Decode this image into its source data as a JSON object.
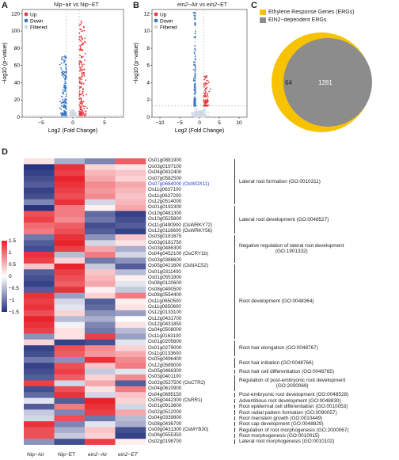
{
  "panels": {
    "a": {
      "letter": "A",
      "title": "Nip−air vs Nip−ET"
    },
    "b": {
      "letter": "B",
      "title_pre": "ein2",
      "title_mid": "−Air vs ",
      "title_post_it": "ein2",
      "title_post": "−ET"
    },
    "c": {
      "letter": "C"
    },
    "d": {
      "letter": "D"
    }
  },
  "volcano_legend": {
    "up": "Up",
    "down": "Down",
    "filtered": "Filtered"
  },
  "volcano_axes": {
    "ylabel": "−log10 (p−value)",
    "xlabel": "Log2 (Fold Change)",
    "a_xticks": [
      "−5",
      "0",
      "5"
    ],
    "a_yticks": [
      "0",
      "20",
      "40",
      "60",
      "80",
      "100",
      "120"
    ],
    "b_xticks": [
      "−10",
      "−5",
      "0",
      "5",
      "10"
    ],
    "b_yticks": [
      "0",
      "2",
      "4",
      "6",
      "8",
      "10",
      "12"
    ]
  },
  "colors": {
    "up": "#e8383d",
    "down": "#3a78c2",
    "filtered": "#cfd8e3",
    "ergs": "#f7c300",
    "ein2": "#8c8c8c",
    "heat_high": "#e8232c",
    "heat_mid": "#ffffff",
    "heat_low": "#27347f"
  },
  "venn": {
    "legend_ergs": "Ethylene Response Genes (ERGs)",
    "legend_ein2": "EIN2−dependent ERGs",
    "count_only": "64",
    "count_overlap": "1281"
  },
  "heatmap": {
    "scale_ticks": [
      "1.5",
      "1",
      "0.5",
      "0",
      "−0.5",
      "−1",
      "−1.5"
    ],
    "columns": [
      "Nip−Air",
      "Nip−ET",
      "ein2−Air",
      "ein2−ET"
    ],
    "genes": [
      "Os01g0881900",
      "Os03g0197100",
      "Os04g0432400",
      "Os07g0582500",
      "Os07g0684000 (OsWOX11)",
      "Os11g0637100",
      "Os11g0637200",
      "Os12g0514000",
      "Os01g0192300",
      "Os10g0481300",
      "Os10g0525800",
      "Os11g0490900 (OsWRKY72)",
      "Os12g0116600 (OsWRKY56)",
      "Os03g0181675",
      "Os03g0181750",
      "Os03g0486300",
      "Os04g0452100 (OsCRY1b)",
      "Os03g0388600",
      "Os05g0421600 (OsNAC52)",
      "Os01g0311400",
      "Os01g0551800",
      "Os08g0120600",
      "Os08g0490500",
      "Os08g0554400",
      "Os11g0650500",
      "Os11g0650600",
      "Os12g0133100",
      "Os12g0431700",
      "Os12g0431850",
      "Os04g0508000",
      "Os11g0163100",
      "Os01g0205600",
      "Os01g0279000",
      "Os11g0133600",
      "Os05g0496400",
      "Os12g0589000",
      "Os05g0466300",
      "Os03g0401100",
      "Os02g0527500 (OsCTR2)",
      "Os04g0610900",
      "Os04g0695150",
      "Os05g0442300 (OsRR1)",
      "Os01g0913600",
      "Os02g0512000",
      "Os04g0339800",
      "Os08g0436700",
      "Os09g0431300 (OsMYB30)",
      "Os06g0555350",
      "Os02g0198700"
    ],
    "terms": [
      {
        "label": "Lateral root formation (GO:0010311)"
      },
      {
        "label": "Lateral root development (GO:0048527)"
      },
      {
        "label": "Negative regulation of lateral root development",
        "label2": "(GO:1901332)"
      },
      {
        "label": "Root development (GO:0048364)"
      },
      {
        "label": "Root hair elongation (GO:0048767)"
      },
      {
        "label": "Root hair initiation (GO:0048766)"
      },
      {
        "label": "Root hair cell differentiation (GO:0048765)"
      },
      {
        "label": "Regulation of post-embryonic root development",
        "label2": "(GO:2000069)"
      },
      {
        "label": "Post-embryonic root development (GO:0048528)"
      },
      {
        "label": "Adventitious root development (GO:0048830)"
      },
      {
        "label": "Root epidermal cell differentiation (GO:0010053)"
      },
      {
        "label": "Root radial pattern formation (GO:0090057)"
      },
      {
        "label": "Root meristem growth (GO:0010449)"
      },
      {
        "label": "Root cap development (GO:0048829)"
      },
      {
        "label": "Regulation of root morphogenesis (GO:2000067)"
      },
      {
        "label": "Root morphogenesis (GO:0010015)"
      },
      {
        "label": "Lateral root morphogenesis (GO:0010102)"
      }
    ],
    "values": [
      [
        0.2,
        -0.6,
        -0.9,
        1.1
      ],
      [
        -1.5,
        1.4,
        0.3,
        0.2
      ],
      [
        -1.4,
        1.3,
        0.5,
        0.4
      ],
      [
        -1.3,
        1.5,
        0.6,
        0.3
      ],
      [
        -1.2,
        1.4,
        0.8,
        0.6
      ],
      [
        -1.4,
        1.3,
        0.7,
        0.5
      ],
      [
        -1.3,
        1.2,
        0.8,
        0.4
      ],
      [
        -0.9,
        1.4,
        -0.3,
        0.5
      ],
      [
        -1.5,
        0.9,
        0.1,
        0.6
      ],
      [
        1.2,
        0.9,
        -1.1,
        -1.4
      ],
      [
        1.3,
        0.8,
        -1.0,
        -1.3
      ],
      [
        1.0,
        1.1,
        -1.3,
        -1.2
      ],
      [
        0.9,
        1.2,
        -1.2,
        -1.4
      ],
      [
        -1.0,
        1.4,
        -0.8,
        0.4
      ],
      [
        -1.2,
        1.5,
        -0.3,
        0.2
      ],
      [
        -1.3,
        1.3,
        0.6,
        -0.6
      ],
      [
        1.4,
        -0.5,
        0.9,
        -0.3
      ],
      [
        1.3,
        0.3,
        -1.0,
        -0.8
      ],
      [
        0.4,
        1.5,
        -0.4,
        -1.2
      ],
      [
        -1.2,
        1.3,
        0.4,
        -0.5
      ],
      [
        -1.3,
        1.2,
        0.5,
        0.1
      ],
      [
        -1.4,
        1.1,
        0.6,
        -0.2
      ],
      [
        -1.2,
        1.4,
        0.1,
        -0.4
      ],
      [
        1.4,
        -0.7,
        0.3,
        0.9
      ],
      [
        1.3,
        -0.3,
        -1.2,
        0.1
      ],
      [
        1.4,
        -0.2,
        -1.1,
        0.2
      ],
      [
        1.2,
        0.3,
        -0.8,
        -0.7
      ],
      [
        1.5,
        -0.5,
        -0.6,
        0.0
      ],
      [
        1.4,
        -0.1,
        -0.9,
        0.2
      ],
      [
        1.3,
        0.2,
        -1.0,
        -0.5
      ],
      [
        -0.8,
        0.2,
        1.3,
        -0.7
      ],
      [
        0.3,
        -1.4,
        -1.3,
        -0.2
      ],
      [
        -1.4,
        1.2,
        0.8,
        0.3
      ],
      [
        -1.3,
        1.1,
        0.7,
        0.6
      ],
      [
        -1.0,
        -0.8,
        1.4,
        0.8
      ],
      [
        -1.4,
        1.2,
        0.4,
        0.9
      ],
      [
        -1.3,
        1.3,
        -0.4,
        -0.2
      ],
      [
        -1.2,
        1.1,
        0.3,
        0.8
      ],
      [
        1.3,
        -0.3,
        0.6,
        -1.2
      ],
      [
        -1.3,
        1.2,
        0.2,
        0.9
      ],
      [
        -1.1,
        1.4,
        -0.3,
        0.4
      ],
      [
        -0.2,
        -1.2,
        1.5,
        0.3
      ],
      [
        -1.2,
        0.9,
        1.4,
        -0.3
      ],
      [
        -0.4,
        -0.9,
        1.3,
        0.6
      ],
      [
        -0.3,
        1.2,
        -1.0,
        -0.5
      ],
      [
        1.4,
        -0.9,
        -0.2,
        -0.6
      ],
      [
        1.2,
        -0.6,
        0.4,
        -1.3
      ],
      [
        1.2,
        -0.4,
        0.3,
        -1.4
      ],
      [
        -0.8,
        -1.3,
        1.3,
        0.1
      ]
    ]
  }
}
